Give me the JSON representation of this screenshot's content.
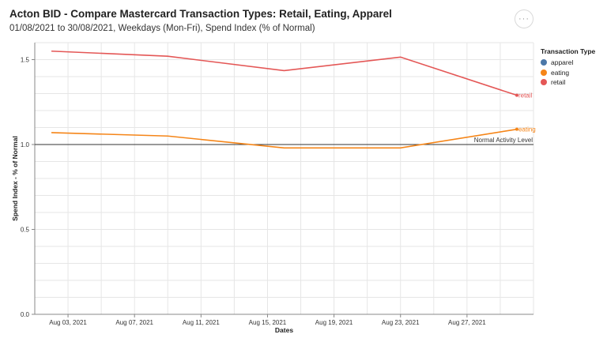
{
  "header": {
    "title": "Acton BID - Compare Mastercard Transaction Types: Retail, Eating, Apparel",
    "subtitle": "01/08/2021 to 30/08/2021, Weekdays (Mon-Fri), Spend Index (% of Normal)",
    "more_glyph": "···",
    "more_icon": "more-icon"
  },
  "chart_data": {
    "type": "line",
    "title": "Acton BID - Compare Mastercard Transaction Types: Retail, Eating, Apparel",
    "subtitle": "01/08/2021 to 30/08/2021, Weekdays (Mon-Fri), Spend Index (% of Normal)",
    "xlabel": "Dates",
    "ylabel": "Spend Index - % of Normal",
    "x_domain": [
      "2021-08-01",
      "2021-08-31"
    ],
    "x_ticks": [
      {
        "date": "2021-08-03",
        "label": "Aug 03, 2021"
      },
      {
        "date": "2021-08-07",
        "label": "Aug 07, 2021"
      },
      {
        "date": "2021-08-11",
        "label": "Aug 11, 2021"
      },
      {
        "date": "2021-08-15",
        "label": "Aug 15, 2021"
      },
      {
        "date": "2021-08-19",
        "label": "Aug 19, 2021"
      },
      {
        "date": "2021-08-23",
        "label": "Aug 23, 2021"
      },
      {
        "date": "2021-08-27",
        "label": "Aug 27, 2021"
      }
    ],
    "ylim": [
      0,
      1.6
    ],
    "y_ticks": [
      {
        "value": 0,
        "label": "0.0"
      },
      {
        "value": 0.5,
        "label": "0.5"
      },
      {
        "value": 1.0,
        "label": "1.0"
      },
      {
        "value": 1.5,
        "label": "1.5"
      }
    ],
    "grid": true,
    "legend": {
      "title": "Transaction Type",
      "placement": "right",
      "items": [
        {
          "name": "apparel",
          "color": "#4c78a8"
        },
        {
          "name": "eating",
          "color": "#f58518"
        },
        {
          "name": "retail",
          "color": "#e45756"
        }
      ]
    },
    "series": [
      {
        "name": "retail",
        "color": "#e45756",
        "end_label": "retail",
        "points": [
          {
            "x": "2021-08-02",
            "y": 1.55
          },
          {
            "x": "2021-08-09",
            "y": 1.52
          },
          {
            "x": "2021-08-16",
            "y": 1.435
          },
          {
            "x": "2021-08-23",
            "y": 1.515
          },
          {
            "x": "2021-08-30",
            "y": 1.29
          }
        ]
      },
      {
        "name": "eating",
        "color": "#f58518",
        "end_label": "eating",
        "points": [
          {
            "x": "2021-08-02",
            "y": 1.07
          },
          {
            "x": "2021-08-09",
            "y": 1.05
          },
          {
            "x": "2021-08-16",
            "y": 0.98
          },
          {
            "x": "2021-08-23",
            "y": 0.98
          },
          {
            "x": "2021-08-30",
            "y": 1.09
          }
        ]
      }
    ],
    "reference_line": {
      "y": 1.0,
      "label": "Normal Activity Level",
      "color": "#333333"
    }
  }
}
